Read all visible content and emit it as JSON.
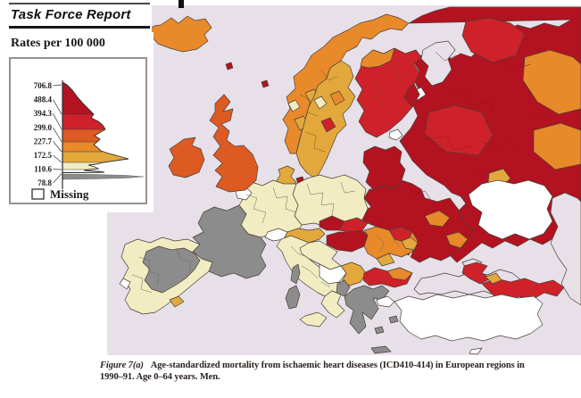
{
  "header": {
    "title": "Task Force Report"
  },
  "legend": {
    "title": "Rates per 100 000",
    "ticks": [
      "706.8",
      "488.4",
      "394.3",
      "299.0",
      "227.7",
      "172.5",
      "110.6",
      "78.8"
    ],
    "missing_label": "Missing",
    "band_colors": [
      "#b31220",
      "#cf2129",
      "#dd5a22",
      "#e8892a",
      "#e2a83c",
      "#f2ecc2",
      "#ffffff"
    ],
    "low_band_color": "#8c8c8c"
  },
  "caption": {
    "figure_label": "Figure 7(a)",
    "line1": "Age-standardized mortality from ischaemic heart diseases (ICD410-414) in European regions in",
    "line2": "1990–91. Age 0–64 years. Men."
  },
  "map": {
    "sea_color": "#e7e0e9",
    "outline_color": "#4a4038",
    "palette": {
      "crimson": "#b31220",
      "red": "#cf2129",
      "vermilion": "#dd5a22",
      "orange": "#e8892a",
      "gold": "#e2a83c",
      "pale": "#f2ecc2",
      "white": "#ffffff",
      "grey": "#8c8c8c",
      "sea": "#e7e0e9"
    },
    "regions": [
      {
        "id": "russia",
        "band": "crimson"
      },
      {
        "id": "rus_red_north",
        "band": "red"
      },
      {
        "id": "rus_red_mid",
        "band": "red"
      },
      {
        "id": "ural_orange_n",
        "band": "orange"
      },
      {
        "id": "ural_orange_s",
        "band": "orange"
      },
      {
        "id": "rus_orange_s1",
        "band": "orange"
      },
      {
        "id": "rus_red_s1",
        "band": "red"
      },
      {
        "id": "rus_gold_1",
        "band": "gold"
      },
      {
        "id": "white_sea",
        "band": "sea"
      },
      {
        "id": "lake_1",
        "band": "white"
      },
      {
        "id": "lake_2",
        "band": "white"
      },
      {
        "id": "spb_white",
        "band": "white"
      },
      {
        "id": "kazakh_white",
        "band": "white"
      },
      {
        "id": "caspian_sea",
        "band": "sea"
      },
      {
        "id": "finland",
        "band": "red"
      },
      {
        "id": "finland_orange",
        "band": "orange"
      },
      {
        "id": "finland_crimson",
        "band": "crimson"
      },
      {
        "id": "norway",
        "band": "orange"
      },
      {
        "id": "norway_gold_1",
        "band": "gold"
      },
      {
        "id": "norway_gold_2",
        "band": "gold"
      },
      {
        "id": "norway_pale_1",
        "band": "pale"
      },
      {
        "id": "sweden",
        "band": "gold"
      },
      {
        "id": "sweden_red_1",
        "band": "red"
      },
      {
        "id": "sweden_orange_1",
        "band": "orange"
      },
      {
        "id": "sweden_pale_1",
        "band": "pale"
      },
      {
        "id": "denmark",
        "band": "gold"
      },
      {
        "id": "denmark_crimson",
        "band": "crimson"
      },
      {
        "id": "baltics",
        "band": "crimson"
      },
      {
        "id": "belarus_ukraine",
        "band": "crimson"
      },
      {
        "id": "ukr_orange_1",
        "band": "orange"
      },
      {
        "id": "ukr_orange_2",
        "band": "orange"
      },
      {
        "id": "ukr_red_1",
        "band": "red"
      },
      {
        "id": "poland",
        "band": "pale"
      },
      {
        "id": "germany",
        "band": "pale"
      },
      {
        "id": "netherlands_white",
        "band": "white"
      },
      {
        "id": "france",
        "band": "grey"
      },
      {
        "id": "iberia",
        "band": "pale"
      },
      {
        "id": "iberia_grey",
        "band": "grey"
      },
      {
        "id": "lisbon_white",
        "band": "white"
      },
      {
        "id": "spain_gold",
        "band": "gold"
      },
      {
        "id": "switzerland",
        "band": "white"
      },
      {
        "id": "austria",
        "band": "gold"
      },
      {
        "id": "czech",
        "band": "crimson"
      },
      {
        "id": "slovakia",
        "band": "red"
      },
      {
        "id": "hungary",
        "band": "crimson"
      },
      {
        "id": "slovenia_croatia",
        "band": "pale"
      },
      {
        "id": "italy",
        "band": "pale"
      },
      {
        "id": "italy_south",
        "band": "pale"
      },
      {
        "id": "sicily",
        "band": "pale"
      },
      {
        "id": "sardinia",
        "band": "grey"
      },
      {
        "id": "corsica",
        "band": "grey"
      },
      {
        "id": "bosnia",
        "band": "white"
      },
      {
        "id": "serbia",
        "band": "gold"
      },
      {
        "id": "romania",
        "band": "orange"
      },
      {
        "id": "romania_red",
        "band": "red"
      },
      {
        "id": "romania_gold",
        "band": "gold"
      },
      {
        "id": "moldova",
        "band": "gold"
      },
      {
        "id": "bulgaria",
        "band": "red"
      },
      {
        "id": "bulgaria_orange",
        "band": "orange"
      },
      {
        "id": "albania",
        "band": "grey"
      },
      {
        "id": "greece",
        "band": "grey"
      },
      {
        "id": "greece_is1",
        "band": "grey"
      },
      {
        "id": "greece_is2",
        "band": "grey"
      },
      {
        "id": "crete",
        "band": "grey"
      },
      {
        "id": "black_sea",
        "band": "sea"
      },
      {
        "id": "azov_sea",
        "band": "sea"
      },
      {
        "id": "crimea",
        "band": "red"
      },
      {
        "id": "caucasus",
        "band": "red"
      },
      {
        "id": "caucasus_gold",
        "band": "gold"
      },
      {
        "id": "turkey",
        "band": "white"
      },
      {
        "id": "thrace",
        "band": "white"
      },
      {
        "id": "cyprus",
        "band": "white"
      },
      {
        "id": "iceland",
        "band": "orange"
      },
      {
        "id": "faroe",
        "band": "crimson"
      },
      {
        "id": "shetland",
        "band": "crimson"
      },
      {
        "id": "ireland",
        "band": "vermilion"
      },
      {
        "id": "uk",
        "band": "vermilion"
      }
    ]
  }
}
